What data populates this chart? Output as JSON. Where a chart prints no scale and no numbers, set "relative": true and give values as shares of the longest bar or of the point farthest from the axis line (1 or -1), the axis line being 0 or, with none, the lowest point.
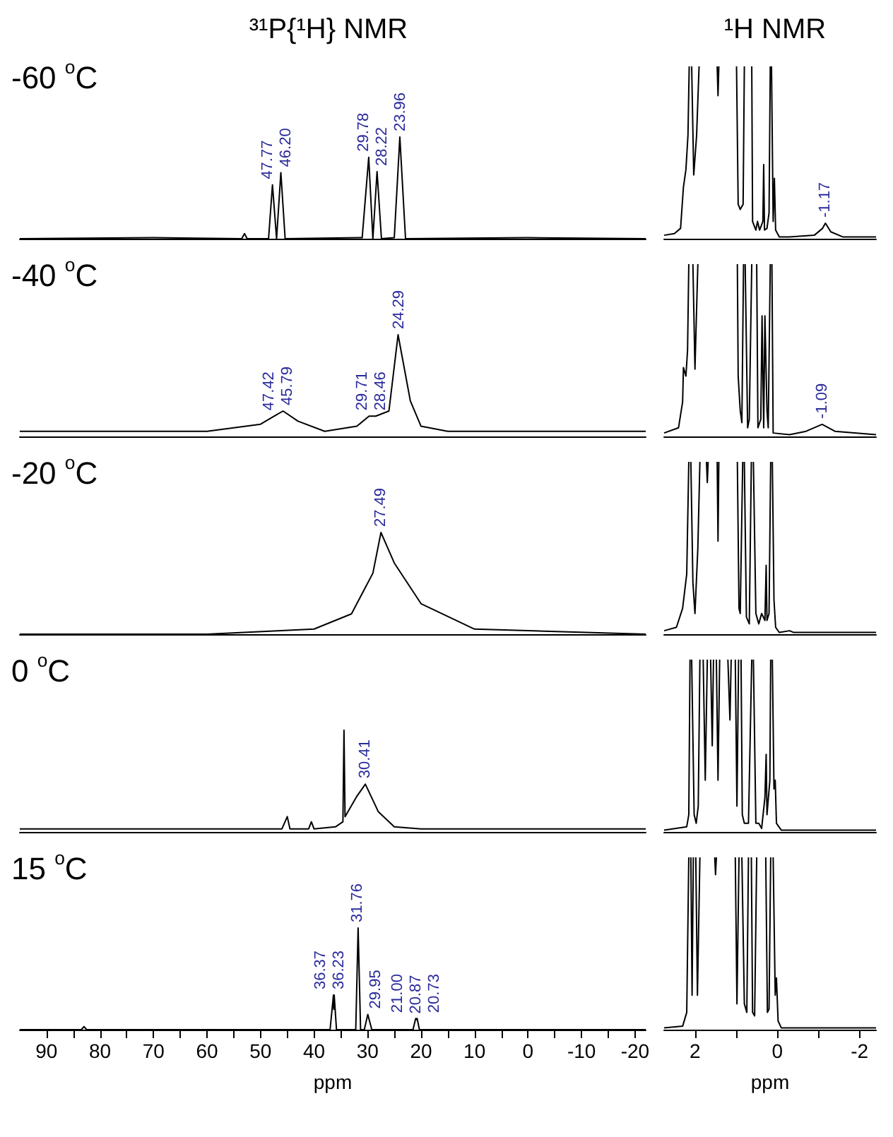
{
  "chart_data": [
    {
      "type": "line",
      "title": "³¹P{¹H} NMR",
      "xlim": [
        95,
        -22
      ],
      "tick_labels": false,
      "relative": true,
      "annotations": [
        "-60 $^{o}$C",
        {
          "text": "47.77",
          "x": 47.77,
          "y": 0.53
        },
        {
          "text": "46.20",
          "x": 46.2,
          "y": 0.65
        },
        {
          "text": "29.78",
          "x": 29.78,
          "y": 0.8
        },
        {
          "text": "28.22",
          "x": 28.22,
          "y": 0.66
        },
        {
          "text": "23.96",
          "x": 23.96,
          "y": 1
        }
      ],
      "series": [
        {
          "color": "#000000",
          "x": [
            95,
            70,
            53.5,
            53,
            52.5,
            48.5,
            47.77,
            47.0,
            46.2,
            45.4,
            31,
            29.78,
            29.0,
            28.22,
            27.4,
            25,
            23.96,
            22.9,
            0,
            -22
          ],
          "values": [
            0,
            0.01,
            0,
            0.05,
            0,
            0,
            0.53,
            0,
            0.65,
            0,
            0.01,
            0.8,
            0,
            0.66,
            0,
            0.01,
            1,
            0,
            0.01,
            0
          ]
        }
      ]
    },
    {
      "type": "line",
      "title": "¹H NMR",
      "xlim": [
        2.75,
        -2.4
      ],
      "tick_labels": false,
      "relative": true,
      "annotations": [
        {
          "text": "-1.17",
          "x": -1.17,
          "y": 0.09
        }
      ],
      "series": [
        {
          "color": "#000000",
          "x": [
            2.75,
            2.5,
            2.35,
            2.28,
            2.22,
            2.17,
            2.14,
            2.11,
            2.08,
            2.03,
            1.96,
            1.9,
            1.7,
            1.46,
            1.44,
            1.42,
            1.2,
            0.99,
            0.95,
            0.9,
            0.83,
            0.8,
            0.7,
            0.62,
            0.6,
            0.52,
            0.48,
            0.43,
            0.35,
            0.33,
            0.31,
            0.25,
            0.2,
            0.17,
            0.155,
            0.14,
            0.1,
            0.07,
            0.04,
            -0.05,
            -0.3,
            -0.9,
            -1.1,
            -1.17,
            -1.3,
            -1.6,
            -2.4
          ],
          "values": [
            0.02,
            0.03,
            0.06,
            0.3,
            0.4,
            0.6,
            1,
            null,
            1,
            0.37,
            0.6,
            1,
            null,
            1,
            0.83,
            1,
            null,
            1,
            0.2,
            0.17,
            0.2,
            1,
            null,
            1,
            0.1,
            0.05,
            0.1,
            0.05,
            0.1,
            0.43,
            0.05,
            0.06,
            0.15,
            1,
            null,
            1,
            0.1,
            0.35,
            0.05,
            0.01,
            0.01,
            0.02,
            0.06,
            0.09,
            0.04,
            0.01,
            0.01
          ]
        }
      ]
    },
    {
      "type": "line",
      "xlim": [
        95,
        -22
      ],
      "tick_labels": false,
      "relative": true,
      "annotations": [
        "-40 $^{o}$C",
        {
          "text": "47.42",
          "x": 47.42,
          "y": 0.2
        },
        {
          "text": "45.79",
          "x": 45.79,
          "y": 0.25
        },
        {
          "text": "29.71",
          "x": 29.71,
          "y": 0.2
        },
        {
          "text": "28.46",
          "x": 28.46,
          "y": 0.2
        },
        {
          "text": "24.29",
          "x": 24.29,
          "y": 1
        }
      ],
      "series": [
        {
          "color": "#000000",
          "x": [
            95,
            60,
            50,
            47.42,
            45.79,
            43,
            38,
            32,
            29.71,
            28.46,
            26,
            24.29,
            22,
            20,
            15,
            -22
          ],
          "values": [
            0.05,
            0.05,
            0.12,
            0.2,
            0.25,
            0.15,
            0.05,
            0.1,
            0.2,
            0.2,
            0.25,
            1,
            0.35,
            0.1,
            0.05,
            0.05
          ]
        }
      ]
    },
    {
      "type": "line",
      "xlim": [
        2.75,
        -2.4
      ],
      "tick_labels": false,
      "relative": true,
      "annotations": [
        {
          "text": "-1.09",
          "x": -1.09,
          "y": 0.07
        }
      ],
      "series": [
        {
          "color": "#000000",
          "x": [
            2.75,
            2.4,
            2.3,
            2.28,
            2.22,
            2.18,
            2.15,
            2.1,
            2.05,
            2.0,
            1.93,
            1.5,
            0.97,
            0.95,
            0.9,
            0.86,
            0.82,
            0.8,
            0.78,
            0.72,
            0.68,
            0.62,
            0.56,
            0.5,
            0.47,
            0.4,
            0.37,
            0.33,
            0.3,
            0.25,
            0.22,
            0.17,
            0.15,
            0.13,
            0.1,
            -0.3,
            -0.7,
            -1.09,
            -1.4,
            -2.4
          ],
          "values": [
            0.02,
            0.05,
            0.2,
            0.4,
            0.35,
            0.5,
            1,
            null,
            1,
            0.39,
            1,
            null,
            1,
            0.35,
            0.15,
            0.08,
            1,
            null,
            1,
            0.05,
            0.1,
            1,
            null,
            1,
            0.05,
            0.1,
            0.7,
            0.05,
            0.7,
            0.15,
            0.05,
            1,
            null,
            1,
            0.02,
            0.01,
            0.03,
            0.07,
            0.03,
            0.01
          ]
        }
      ]
    },
    {
      "type": "line",
      "xlim": [
        95,
        -22
      ],
      "tick_labels": false,
      "relative": true,
      "annotations": [
        "-20 $^{o}$C",
        {
          "text": "27.49",
          "x": 27.49,
          "y": 1
        }
      ],
      "series": [
        {
          "color": "#000000",
          "x": [
            95,
            60,
            40,
            33,
            29,
            27.49,
            25,
            20,
            10,
            -22
          ],
          "values": [
            0,
            0,
            0.05,
            0.2,
            0.6,
            1,
            0.7,
            0.3,
            0.05,
            0
          ]
        }
      ]
    },
    {
      "type": "line",
      "xlim": [
        2.75,
        -2.4
      ],
      "tick_labels": false,
      "relative": true,
      "series": [
        {
          "color": "#000000",
          "x": [
            2.75,
            2.45,
            2.3,
            2.2,
            2.15,
            2.13,
            2.1,
            2.05,
            2.0,
            1.93,
            1.88,
            1.8,
            1.72,
            1.7,
            1.68,
            1.5,
            1.46,
            1.44,
            1.42,
            1.2,
            0.97,
            0.93,
            0.9,
            0.84,
            0.82,
            0.8,
            0.75,
            0.68,
            0.63,
            0.6,
            0.58,
            0.52,
            0.45,
            0.38,
            0.3,
            0.27,
            0.25,
            0.2,
            0.16,
            0.14,
            0.12,
            0.08,
            0.04,
            -0.05,
            -0.3,
            -0.4,
            -2.4
          ],
          "values": [
            0.02,
            0.04,
            0.15,
            0.35,
            1,
            null,
            1,
            0.3,
            0.12,
            0.5,
            1,
            null,
            1,
            0.88,
            1,
            null,
            1,
            0.54,
            1,
            null,
            1,
            0.15,
            0.12,
            1,
            null,
            1,
            0.1,
            0.06,
            1,
            null,
            1,
            0.12,
            0.06,
            0.12,
            0.08,
            0.4,
            0.08,
            0.12,
            1,
            null,
            1,
            0.2,
            0.04,
            0.01,
            0.02,
            0.01,
            0.01
          ]
        }
      ]
    },
    {
      "type": "line",
      "xlim": [
        95,
        -22
      ],
      "tick_labels": false,
      "relative": true,
      "annotations": [
        "0 $^{o}$C",
        {
          "text": "30.41",
          "x": 30.41,
          "y": 0.47
        }
      ],
      "series": [
        {
          "color": "#000000",
          "x": [
            95,
            46,
            45,
            44.5,
            41,
            40.5,
            40,
            36,
            34.6,
            34.4,
            34.2,
            32,
            30.41,
            28,
            25,
            20,
            -22
          ],
          "values": [
            0.03,
            0.03,
            0.15,
            0.03,
            0.03,
            0.1,
            0.03,
            0.05,
            0.1,
            1,
            0.15,
            0.35,
            0.47,
            0.2,
            0.05,
            0.03,
            0.03
          ]
        }
      ]
    },
    {
      "type": "line",
      "xlim": [
        2.75,
        -2.4
      ],
      "tick_labels": false,
      "relative": true,
      "series": [
        {
          "color": "#000000",
          "x": [
            2.75,
            2.2,
            2.15,
            2.12,
            2.1,
            2.08,
            2.02,
            1.97,
            1.92,
            1.88,
            1.85,
            1.8,
            1.75,
            1.7,
            1.68,
            1.62,
            1.58,
            1.55,
            1.52,
            1.48,
            1.44,
            1.4,
            1.38,
            1.2,
            1.15,
            1.12,
            1.1,
            1.02,
            0.98,
            0.94,
            0.92,
            0.88,
            0.85,
            0.8,
            0.7,
            0.62,
            0.6,
            0.58,
            0.52,
            0.45,
            0.38,
            0.3,
            0.27,
            0.25,
            0.18,
            0.16,
            0.14,
            0.12,
            0.08,
            0.05,
            0.02,
            -0.1,
            -2.4
          ],
          "values": [
            0.01,
            0.03,
            0.1,
            1,
            null,
            1,
            0.1,
            0.05,
            0.15,
            1,
            null,
            1,
            0.3,
            1,
            null,
            1,
            0.5,
            1,
            null,
            1,
            0.3,
            1,
            null,
            1,
            0.65,
            1,
            null,
            1,
            0.15,
            1,
            null,
            1,
            0.1,
            0.05,
            0.05,
            1,
            null,
            1,
            0.05,
            0.05,
            0.02,
            0.2,
            0.45,
            0.1,
            0.3,
            1,
            null,
            1,
            0.25,
            0.3,
            0.05,
            0.01,
            0.01
          ]
        }
      ]
    },
    {
      "type": "line",
      "xlabel": "ppm",
      "xlim": [
        95,
        -22
      ],
      "tick_labels": "x",
      "relative": true,
      "xticks": [
        90,
        {
          "value": 85,
          "label": null
        },
        80,
        {
          "value": 75,
          "label": null
        },
        70,
        {
          "value": 65,
          "label": null
        },
        60,
        {
          "value": 55,
          "label": null
        },
        50,
        {
          "value": 45,
          "label": null
        },
        40,
        {
          "value": 35,
          "label": null
        },
        30,
        {
          "value": 25,
          "label": null
        },
        20,
        {
          "value": 15,
          "label": null
        },
        10,
        {
          "value": 5,
          "label": null
        },
        0,
        {
          "value": -5,
          "label": null
        },
        -10,
        {
          "value": -15,
          "label": null
        },
        -20
      ],
      "annotations": [
        "15 $^{o}$C",
        {
          "text": "36.37",
          "x": 36.37,
          "y": 0.34
        },
        {
          "text": "36.23",
          "x": 36.23,
          "y": 0.34
        },
        {
          "text": "31.76",
          "x": 31.76,
          "y": 1
        },
        {
          "text": "29.95",
          "x": 29.95,
          "y": 0.15
        },
        {
          "text": "21.00",
          "x": 21.0,
          "y": 0.11
        },
        {
          "text": "20.87",
          "x": 20.87,
          "y": 0.1
        },
        {
          "text": "20.73",
          "x": 20.73,
          "y": 0.11
        }
      ],
      "series": [
        {
          "color": "#000000",
          "x": [
            95,
            83.5,
            83,
            82.5,
            37,
            36.37,
            36.3,
            36.23,
            35.8,
            32.2,
            31.76,
            31.3,
            30.6,
            29.95,
            29.2,
            21.5,
            21.0,
            20.87,
            20.73,
            20.3,
            -22
          ],
          "values": [
            0,
            0,
            0.03,
            0,
            0,
            0.34,
            0.2,
            0.34,
            0,
            0,
            1,
            0,
            0,
            0.15,
            0,
            0,
            0.11,
            0.1,
            0.11,
            0,
            0
          ]
        }
      ]
    },
    {
      "type": "line",
      "xlabel": "ppm",
      "xlim": [
        2.75,
        -2.4
      ],
      "tick_labels": "x",
      "relative": true,
      "xticks": [
        2,
        {
          "value": 1,
          "label": null
        },
        0,
        {
          "value": -1,
          "label": null
        },
        -2
      ],
      "series": [
        {
          "color": "#000000",
          "x": [
            2.75,
            2.3,
            2.2,
            2.15,
            2.13,
            2.1,
            2.07,
            2.04,
            2.02,
            1.98,
            1.94,
            1.88,
            1.86,
            1.52,
            1.5,
            1.48,
            1.46,
            1.02,
            0.98,
            0.93,
            0.9,
            0.86,
            0.8,
            0.74,
            0.7,
            0.68,
            0.63,
            0.6,
            0.55,
            0.5,
            0.48,
            0.28,
            0.24,
            0.2,
            0.16,
            0.14,
            0.1,
            0.05,
            0.02,
            -0.02,
            -0.1,
            -2.4
          ],
          "values": [
            0.01,
            0.02,
            0.1,
            1,
            null,
            1,
            0.2,
            1,
            null,
            1,
            0.2,
            1,
            null,
            1,
            0.9,
            1,
            null,
            1,
            0.15,
            1,
            null,
            1,
            0.15,
            0.1,
            1,
            null,
            1,
            0.1,
            0.08,
            1,
            null,
            1,
            0.1,
            0.12,
            1,
            null,
            1,
            0.2,
            0.3,
            0.05,
            0.01,
            0.01
          ]
        }
      ]
    }
  ]
}
